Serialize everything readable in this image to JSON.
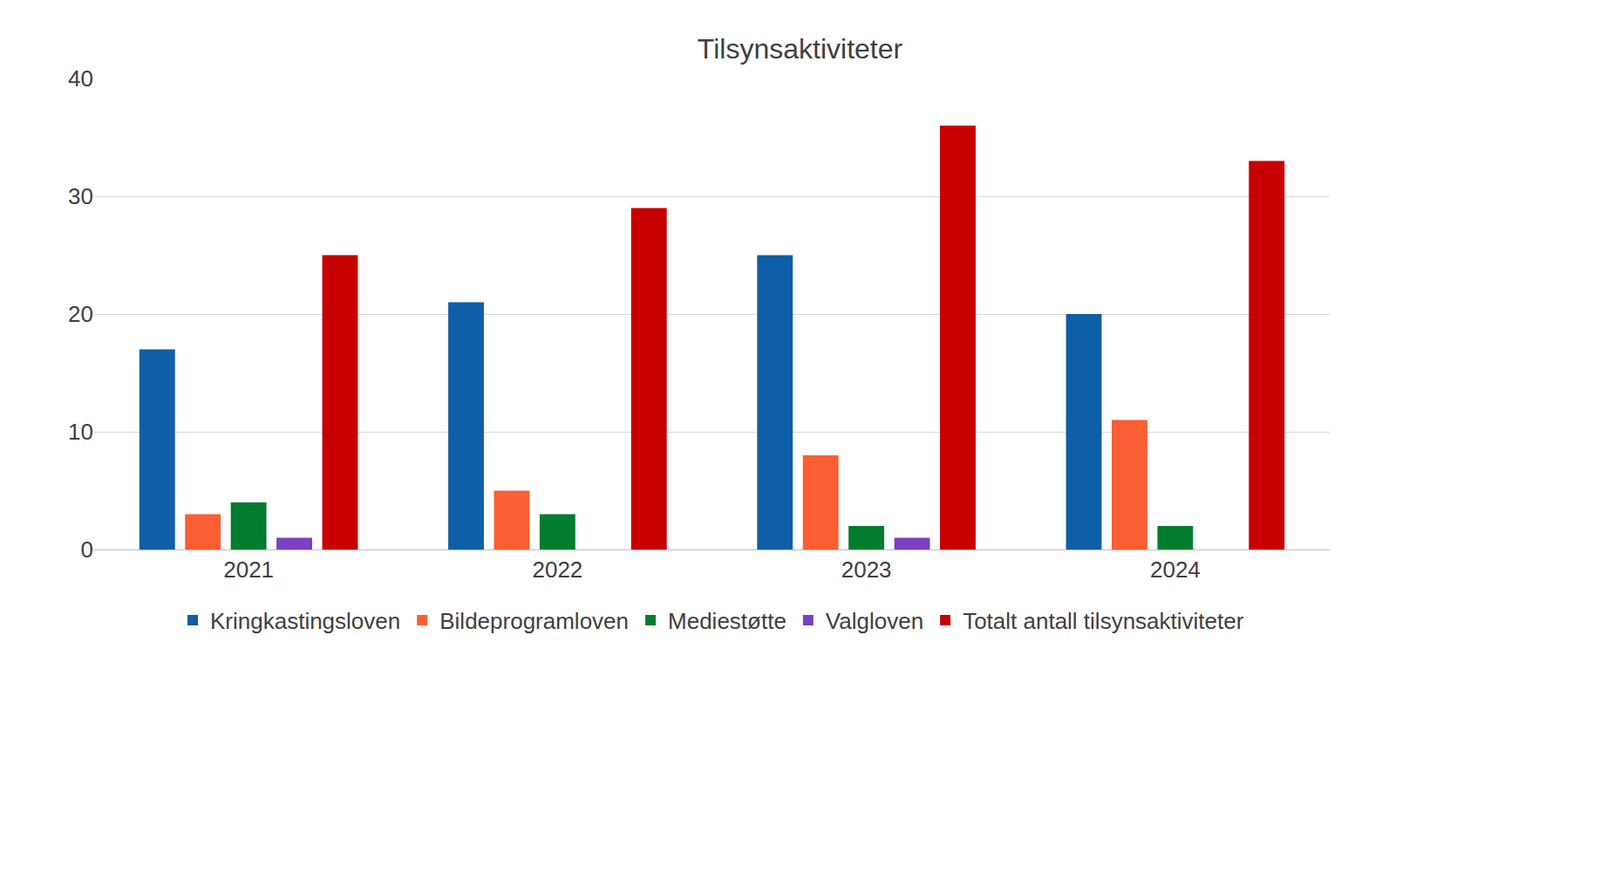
{
  "chart_data": {
    "type": "bar",
    "title": "Tilsynsaktiviteter",
    "categories": [
      "2021",
      "2022",
      "2023",
      "2024"
    ],
    "series": [
      {
        "name": "Kringkastingsloven",
        "color": "#0e5ea8",
        "values": [
          17,
          21,
          25,
          20
        ]
      },
      {
        "name": "Bildeprogramloven",
        "color": "#f95f32",
        "values": [
          3,
          5,
          8,
          11
        ]
      },
      {
        "name": "Mediestøtte",
        "color": "#027c2f",
        "values": [
          4,
          3,
          2,
          2
        ]
      },
      {
        "name": "Valgloven",
        "color": "#7c40c4",
        "values": [
          1,
          0,
          1,
          0
        ]
      },
      {
        "name": "Totalt antall tilsynsaktiviteter",
        "color": "#c80000",
        "values": [
          25,
          29,
          36,
          33
        ]
      }
    ],
    "ylim": [
      0,
      40
    ],
    "yticks": [
      0,
      10,
      20,
      30,
      40
    ],
    "grid": true,
    "legend": "bottom"
  }
}
